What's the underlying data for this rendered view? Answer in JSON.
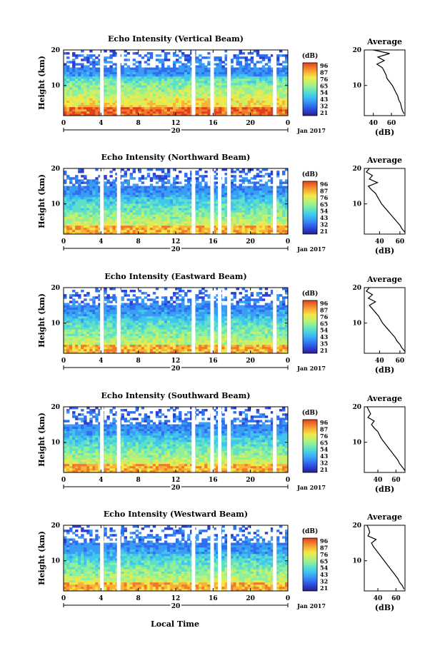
{
  "common": {
    "x_ticks": [
      "0",
      "4",
      "8",
      "12",
      "16",
      "20",
      "0"
    ],
    "day_label": "20",
    "date_label": "Jan 2017",
    "y_label": "Height (km)",
    "y_ticks": [
      "20",
      "10"
    ],
    "unit_label": "(dB)",
    "avg_title": "Average",
    "avg_x_ticks": [
      "40",
      "60"
    ],
    "avg_x_label": "(dB)",
    "avg_y_ticks": [
      "20",
      "10"
    ],
    "x_axis_title": "Local Time",
    "colors": [
      "#2a1f8f",
      "#2c3fcf",
      "#2f6ef0",
      "#3a9cf5",
      "#3fc6ef",
      "#5ee0c8",
      "#8ef09a",
      "#c6f06a",
      "#f2e84a",
      "#f8b236",
      "#f07a2a",
      "#e0401e"
    ]
  },
  "chart_data": [
    {
      "type": "heatmap",
      "title": "Echo Intensity (Vertical Beam)",
      "x_range_local_time_h": [
        0,
        24
      ],
      "y_range_km": [
        1.5,
        20
      ],
      "color_scale_db": [
        "96",
        "87",
        "76",
        "65",
        "54",
        "43",
        "32",
        "21"
      ],
      "gaps_local_time_h": [
        4.1,
        5.9,
        13.9,
        15.9,
        17.7,
        22.6
      ],
      "average": {
        "xlim_db": [
          30,
          75
        ],
        "height_km": [
          20,
          19,
          18,
          17,
          16,
          15,
          14,
          13,
          12,
          11,
          10,
          9,
          8,
          7,
          6,
          5,
          4,
          3,
          2
        ],
        "db": [
          40,
          58,
          45,
          52,
          44,
          50,
          52,
          54,
          55,
          58,
          61,
          63,
          65,
          67,
          68,
          70,
          71,
          72,
          74
        ]
      }
    },
    {
      "type": "heatmap",
      "title": "Echo Intensity (Northward Beam)",
      "x_range_local_time_h": [
        0,
        24
      ],
      "y_range_km": [
        1.5,
        20
      ],
      "color_scale_db": [
        "96",
        "87",
        "76",
        "65",
        "54",
        "43",
        "32",
        "21"
      ],
      "gaps_local_time_h": [
        4.1,
        5.9,
        13.9,
        15.9,
        16.7,
        17.7,
        22.6
      ],
      "average": {
        "xlim_db": [
          25,
          65
        ],
        "height_km": [
          20,
          19,
          18,
          17,
          16,
          15,
          14,
          13,
          12,
          11,
          10,
          9,
          8,
          7,
          6,
          5,
          4,
          3,
          2
        ],
        "db": [
          30,
          27,
          33,
          30,
          38,
          29,
          32,
          36,
          38,
          40,
          42,
          45,
          48,
          51,
          54,
          57,
          60,
          62,
          65
        ]
      }
    },
    {
      "type": "heatmap",
      "title": "Echo Intensity (Eastward Beam)",
      "x_range_local_time_h": [
        0,
        24
      ],
      "y_range_km": [
        1.5,
        20
      ],
      "color_scale_db": [
        "96",
        "87",
        "76",
        "65",
        "54",
        "43",
        "35",
        "21"
      ],
      "gaps_local_time_h": [
        4.1,
        5.9,
        13.9,
        15.9,
        16.7,
        17.7,
        22.6
      ],
      "average": {
        "xlim_db": [
          25,
          65
        ],
        "height_km": [
          20,
          19,
          18,
          17,
          16,
          15,
          14,
          13,
          12,
          11,
          10,
          9,
          8,
          7,
          6,
          5,
          4,
          3,
          2
        ],
        "db": [
          30,
          27,
          33,
          29,
          36,
          30,
          33,
          36,
          39,
          41,
          43,
          46,
          49,
          52,
          55,
          57,
          60,
          62,
          65
        ]
      }
    },
    {
      "type": "heatmap",
      "title": "Echo Intensity (Southward Beam)",
      "x_range_local_time_h": [
        0,
        24
      ],
      "y_range_km": [
        1.5,
        20
      ],
      "color_scale_db": [
        "96",
        "87",
        "76",
        "65",
        "54",
        "43",
        "32",
        "21"
      ],
      "gaps_local_time_h": [
        4.1,
        5.9,
        13.9,
        15.9,
        16.7,
        17.7,
        22.6
      ],
      "average": {
        "xlim_db": [
          25,
          70
        ],
        "height_km": [
          20,
          19,
          18,
          17,
          16,
          15,
          14,
          13,
          12,
          11,
          10,
          9,
          8,
          7,
          6,
          5,
          4,
          3,
          2
        ],
        "db": [
          28,
          30,
          32,
          29,
          36,
          33,
          36,
          40,
          42,
          44,
          47,
          50,
          53,
          56,
          59,
          62,
          64,
          67,
          70
        ]
      }
    },
    {
      "type": "heatmap",
      "title": "Echo Intensity (Westward Beam)",
      "x_range_local_time_h": [
        0,
        24
      ],
      "y_range_km": [
        1.5,
        20
      ],
      "color_scale_db": [
        "96",
        "87",
        "76",
        "65",
        "54",
        "43",
        "32",
        "21"
      ],
      "gaps_local_time_h": [
        4.1,
        5.9,
        13.9,
        15.9,
        16.7,
        17.7,
        22.6
      ],
      "average": {
        "xlim_db": [
          25,
          70
        ],
        "height_km": [
          20,
          19,
          18,
          17,
          16,
          15,
          14,
          13,
          12,
          11,
          10,
          9,
          8,
          7,
          6,
          5,
          4,
          3,
          2
        ],
        "db": [
          28,
          30,
          31,
          29,
          38,
          33,
          35,
          38,
          41,
          44,
          47,
          50,
          53,
          56,
          59,
          62,
          64,
          67,
          69
        ]
      }
    }
  ]
}
